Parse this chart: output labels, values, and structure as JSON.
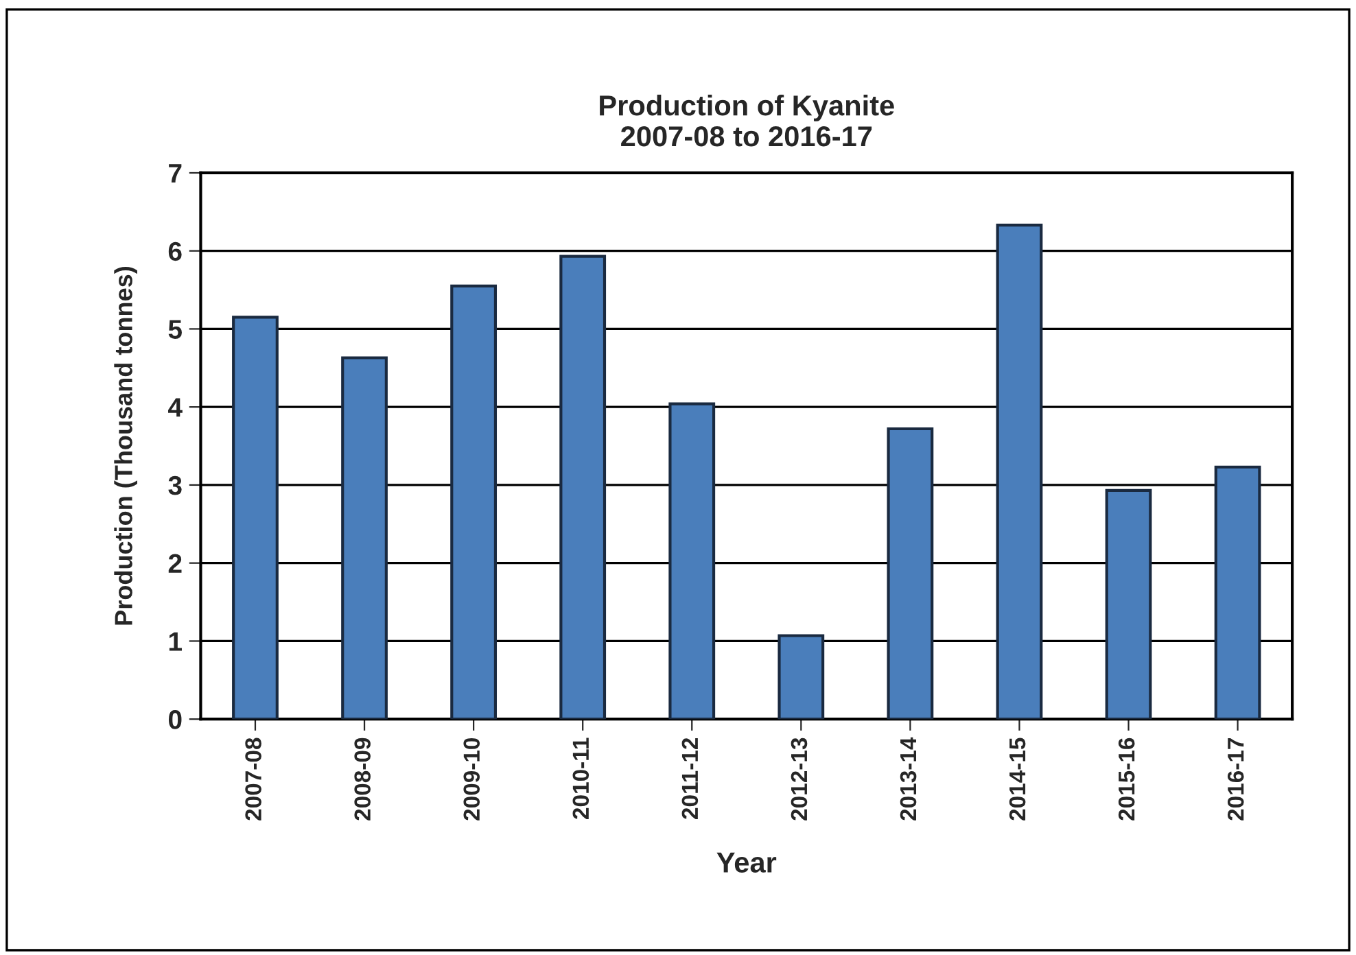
{
  "chart_data": {
    "type": "bar",
    "title": "Production of Kyanite\n2007-08 to 2016-17",
    "xlabel": "Year",
    "ylabel": "Production (Thousand tonnes)",
    "categories": [
      "2007-08",
      "2008-09",
      "2009-10",
      "2010-11",
      "2011-12",
      "2012-13",
      "2013-14",
      "2014-15",
      "2015-16",
      "2016-17"
    ],
    "values": [
      5.15,
      4.63,
      5.55,
      5.93,
      4.04,
      1.07,
      3.72,
      6.33,
      2.93,
      3.23
    ],
    "color": "#4a7ebb",
    "ylim": [
      0,
      7
    ],
    "yticks": [
      0,
      1,
      2,
      3,
      4,
      5,
      6,
      7
    ],
    "grid": "y"
  }
}
